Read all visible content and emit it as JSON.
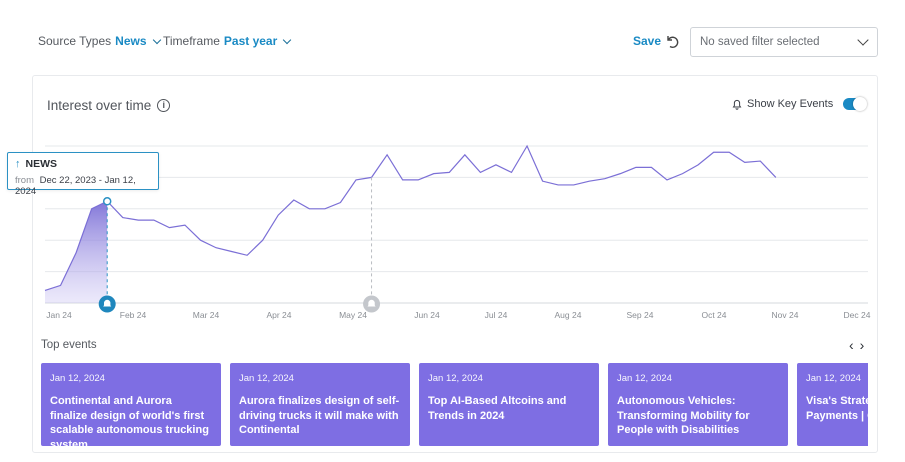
{
  "filters": {
    "source": {
      "label": "Source Types",
      "value": "News"
    },
    "timeframe": {
      "label": "Timeframe",
      "value": "Past year"
    }
  },
  "save_label": "Save",
  "saved_filter": {
    "value": "No saved filter selected"
  },
  "card": {
    "title": "Interest over time",
    "key_events_label": "Show Key Events",
    "key_events_on": true
  },
  "tooltip": {
    "title": "NEWS",
    "from_label": "from",
    "range": "Dec 22, 2023 - Jan 12, 2024"
  },
  "chart_data": {
    "type": "line",
    "x_ticks": [
      "Jan 24",
      "Feb 24",
      "Mar 24",
      "Apr 24",
      "May 24",
      "Jun 24",
      "Jul 24",
      "Aug 24",
      "Sep 24",
      "Oct 24",
      "Nov 24",
      "Dec 24"
    ],
    "series": [
      {
        "values": [
          10,
          14,
          40,
          75,
          81,
          68,
          66,
          66,
          60,
          62,
          50,
          44,
          41,
          38,
          50,
          70,
          82,
          75,
          75,
          80,
          98,
          100,
          118,
          98,
          98,
          103,
          104,
          118,
          104,
          110,
          104,
          125,
          97,
          94,
          94,
          97,
          99,
          103,
          108,
          108,
          98,
          103,
          110,
          120,
          120,
          112,
          113,
          100
        ],
        "x_start": "Dec 24, 2023",
        "interval": "weekly",
        "highlight_index": 4
      }
    ],
    "ylim": [
      0,
      125
    ],
    "grid": true,
    "key_events": [
      {
        "index": 4,
        "active": true
      },
      {
        "index": 21,
        "active": false
      }
    ]
  },
  "top_events_label": "Top events",
  "events": [
    {
      "date": "Jan 12, 2024",
      "title": "Continental and Aurora finalize design of world's first scalable autonomous trucking system"
    },
    {
      "date": "Jan 12, 2024",
      "title": "Aurora finalizes design of self-driving trucks it will make with Continental"
    },
    {
      "date": "Jan 12, 2024",
      "title": "Top AI-Based Altcoins and Trends in 2024"
    },
    {
      "date": "Jan 12, 2024",
      "title": "Autonomous Vehicles: Transforming Mobility for People with Disabilities"
    },
    {
      "date": "Jan 12, 2024",
      "title": "Visa's Strategy Unveiling the Payments | C"
    }
  ],
  "colors": {
    "accent": "#1a8ac4",
    "line": "#7b6fd6",
    "event_card": "#7e6ee3"
  }
}
